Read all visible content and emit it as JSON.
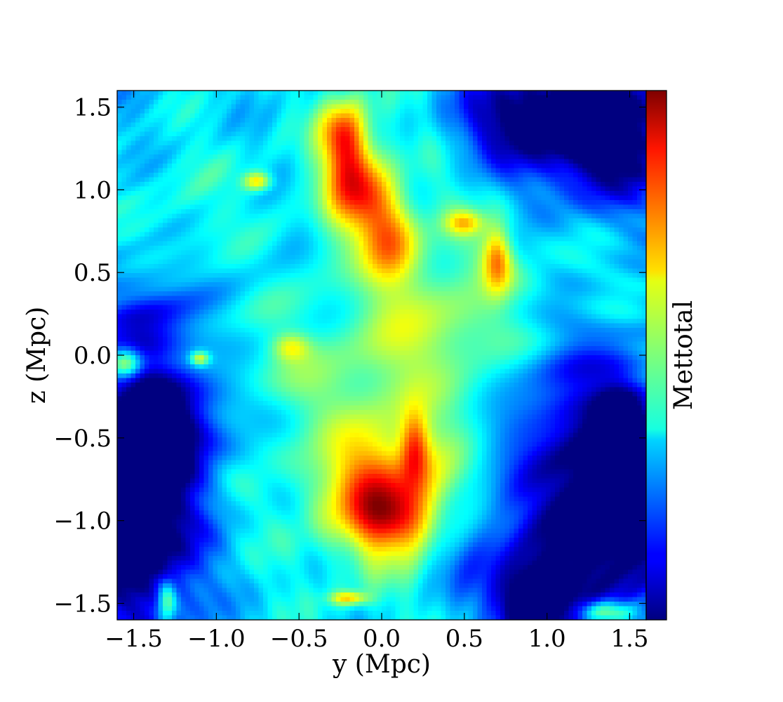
{
  "chart_data": {
    "type": "heatmap",
    "title": "",
    "xlabel": "y  (Mpc)",
    "ylabel": "z  (Mpc)",
    "colorbar_label": "Mettotal",
    "colormap": "jet",
    "xlim": [
      -1.6,
      1.6
    ],
    "ylim": [
      -1.6,
      1.6
    ],
    "x_ticks": [
      -1.5,
      -1.0,
      -0.5,
      0.0,
      0.5,
      1.0,
      1.5
    ],
    "x_tick_labels": [
      "−1.5",
      "−1.0",
      "−0.5",
      "0.0",
      "0.5",
      "1.0",
      "1.5"
    ],
    "y_ticks": [
      1.5,
      1.0,
      0.5,
      0.0,
      -0.5,
      -1.0,
      -1.5
    ],
    "y_tick_labels": [
      "1.5",
      "1.0",
      "0.5",
      "0.0",
      "−0.5",
      "−1.0",
      "−1.5"
    ],
    "colorbar_ticks_shown": false,
    "grid": false,
    "features": [
      {
        "x": -0.2,
        "y": 1.15,
        "sx": 0.12,
        "sy": 0.25,
        "v": 0.42
      },
      {
        "x": -0.25,
        "y": 1.35,
        "sx": 0.08,
        "sy": 0.12,
        "v": 0.2
      },
      {
        "x": 0.05,
        "y": 0.7,
        "sx": 0.12,
        "sy": 0.18,
        "v": 0.3
      },
      {
        "x": -0.05,
        "y": 0.95,
        "sx": 0.1,
        "sy": 0.15,
        "v": 0.22
      },
      {
        "x": 0.0,
        "y": -0.85,
        "sx": 0.25,
        "sy": 0.25,
        "v": 0.45
      },
      {
        "x": 0.1,
        "y": -1.0,
        "sx": 0.15,
        "sy": 0.12,
        "v": 0.2
      },
      {
        "x": 0.2,
        "y": -0.55,
        "sx": 0.06,
        "sy": 0.15,
        "v": 0.3
      },
      {
        "x": 0.7,
        "y": 0.6,
        "sx": 0.06,
        "sy": 0.15,
        "v": 0.3
      },
      {
        "x": 0.5,
        "y": 0.8,
        "sx": 0.08,
        "sy": 0.05,
        "v": 0.22
      },
      {
        "x": -0.75,
        "y": 1.05,
        "sx": 0.06,
        "sy": 0.04,
        "v": 0.3
      },
      {
        "x": -1.55,
        "y": -0.05,
        "sx": 0.07,
        "sy": 0.07,
        "v": 0.38
      },
      {
        "x": -1.1,
        "y": -0.02,
        "sx": 0.04,
        "sy": 0.03,
        "v": 0.3
      },
      {
        "x": -0.55,
        "y": 0.05,
        "sx": 0.08,
        "sy": 0.06,
        "v": 0.2
      },
      {
        "x": 1.35,
        "y": -1.55,
        "sx": 0.12,
        "sy": 0.05,
        "v": 0.35
      },
      {
        "x": -1.3,
        "y": -1.5,
        "sx": 0.04,
        "sy": 0.1,
        "v": 0.3
      },
      {
        "x": -0.2,
        "y": -1.47,
        "sx": 0.08,
        "sy": 0.03,
        "v": 0.3
      },
      {
        "x": 1.35,
        "y": 1.35,
        "sx": 0.35,
        "sy": 0.3,
        "v": -0.45
      },
      {
        "x": 0.8,
        "y": 1.45,
        "sx": 0.25,
        "sy": 0.2,
        "v": -0.3
      },
      {
        "x": -1.45,
        "y": -0.9,
        "sx": 0.25,
        "sy": 0.55,
        "v": -0.5
      },
      {
        "x": -1.3,
        "y": -0.4,
        "sx": 0.25,
        "sy": 0.2,
        "v": -0.3
      },
      {
        "x": -1.4,
        "y": 0.2,
        "sx": 0.2,
        "sy": 0.2,
        "v": -0.22
      },
      {
        "x": 1.35,
        "y": -0.95,
        "sx": 0.35,
        "sy": 0.45,
        "v": -0.48
      },
      {
        "x": 0.9,
        "y": -1.5,
        "sx": 0.15,
        "sy": 0.15,
        "v": -0.5
      },
      {
        "x": 1.1,
        "y": -0.2,
        "sx": 0.4,
        "sy": 0.35,
        "v": -0.18
      },
      {
        "x": 1.45,
        "y": -0.6,
        "sx": 0.1,
        "sy": 0.25,
        "v": -0.45
      },
      {
        "x": 0.6,
        "y": -1.2,
        "sx": 0.2,
        "sy": 0.2,
        "v": -0.15
      },
      {
        "x": -0.6,
        "y": 0.4,
        "sx": 0.4,
        "sy": 0.3,
        "v": -0.05
      },
      {
        "x": 0.0,
        "y": 0.0,
        "sx": 0.5,
        "sy": 0.5,
        "v": 0.08
      },
      {
        "x": 0.5,
        "y": 0.1,
        "sx": 0.4,
        "sy": 0.4,
        "v": 0.1
      },
      {
        "x": -0.4,
        "y": -0.5,
        "sx": 0.4,
        "sy": 0.4,
        "v": 0.0
      },
      {
        "x": -1.2,
        "y": 0.9,
        "sx": 0.2,
        "sy": 0.3,
        "v": 0.05
      }
    ]
  }
}
